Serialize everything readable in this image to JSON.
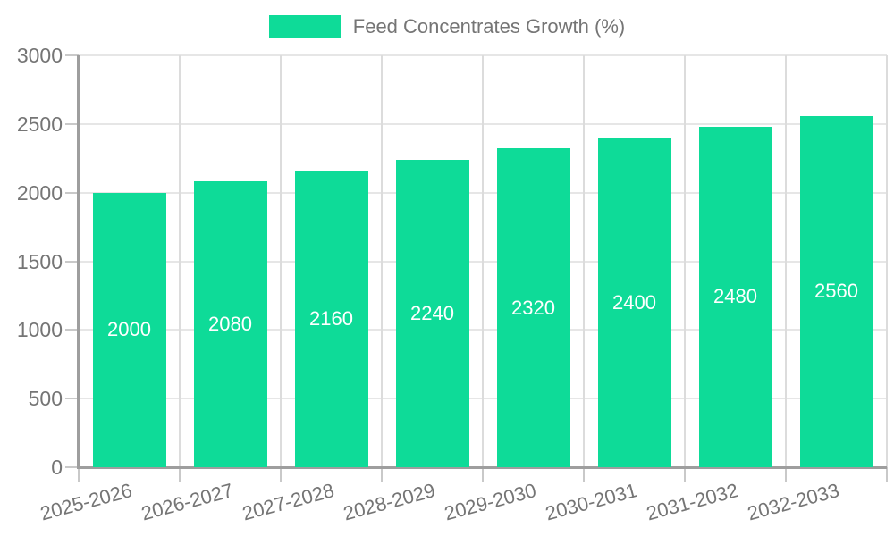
{
  "chart_data": {
    "type": "bar",
    "title": "",
    "legend": {
      "label": "Feed Concentrates Growth (%)",
      "position": "top"
    },
    "categories": [
      "2025-2026",
      "2026-2027",
      "2027-2028",
      "2028-2029",
      "2029-2030",
      "2030-2031",
      "2031-2032",
      "2032-2033"
    ],
    "values": [
      2000,
      2080,
      2160,
      2240,
      2320,
      2400,
      2480,
      2560
    ],
    "xlabel": "",
    "ylabel": "",
    "ylim": [
      0,
      3000
    ],
    "yticks": [
      0,
      500,
      1000,
      1500,
      2000,
      2500,
      3000
    ],
    "grid": true,
    "colors": {
      "bar": "#0edb98",
      "bar_label": "#ffffff",
      "axis": "#9e9e9e",
      "gridline_horizontal": "#e6e6e6",
      "gridline_vertical": "#dcdcdc",
      "tick": "#c9c9c9",
      "text": "#757575",
      "background": "#ffffff"
    }
  }
}
